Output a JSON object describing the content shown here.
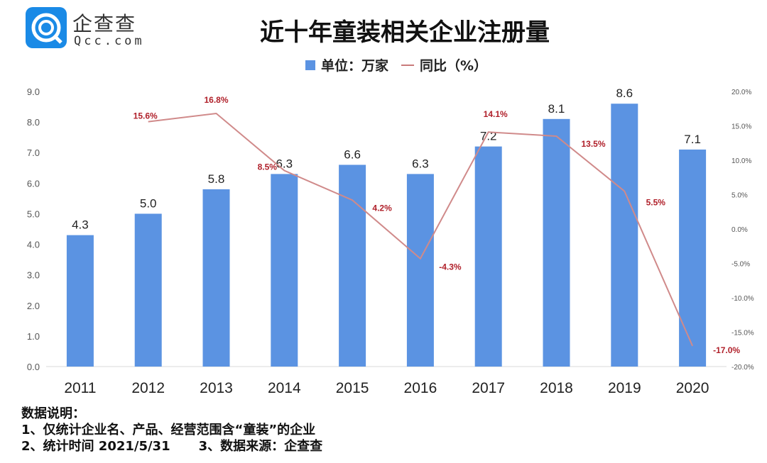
{
  "logo": {
    "cn": "企查查",
    "en": "Qcc.com"
  },
  "title": "近十年童装相关企业注册量",
  "legend": {
    "bars": "单位：万家",
    "line": "同比（%）"
  },
  "colors": {
    "bar": "#5b93e2",
    "line": "#d08a8a",
    "line_label": "#b0202a"
  },
  "chart_data": {
    "type": "bar+line",
    "title": "近十年童装相关企业注册量",
    "categories": [
      "2011",
      "2012",
      "2013",
      "2014",
      "2015",
      "2016",
      "2017",
      "2018",
      "2019",
      "2020"
    ],
    "series": [
      {
        "name": "单位：万家",
        "type": "bar",
        "axis": "left",
        "values": [
          4.3,
          5.0,
          5.8,
          6.3,
          6.6,
          6.3,
          7.2,
          8.1,
          8.6,
          7.1
        ],
        "labels": [
          "4.3",
          "5.0",
          "5.8",
          "6.3",
          "6.6",
          "6.3",
          "7.2",
          "8.1",
          "8.6",
          "7.1"
        ]
      },
      {
        "name": "同比（%）",
        "type": "line",
        "axis": "right",
        "values": [
          null,
          15.6,
          16.8,
          8.5,
          4.2,
          -4.3,
          14.1,
          13.5,
          5.5,
          -17.0
        ],
        "labels": [
          "",
          "15.6%",
          "16.8%",
          "8.5%",
          "4.2%",
          "-4.3%",
          "14.1%",
          "13.5%",
          "5.5%",
          "-17.0%"
        ]
      }
    ],
    "left_axis": {
      "range": [
        0,
        9
      ],
      "ticks": [
        "0.0",
        "1.0",
        "2.0",
        "3.0",
        "4.0",
        "5.0",
        "6.0",
        "7.0",
        "8.0",
        "9.0"
      ]
    },
    "right_axis": {
      "range": [
        -20,
        20
      ],
      "ticks": [
        "-20.0%",
        "-15.0%",
        "-10.0%",
        "-5.0%",
        "0.0%",
        "5.0%",
        "10.0%",
        "15.0%",
        "20.0%"
      ]
    },
    "grid": false,
    "legend_position": "top"
  },
  "notes": {
    "heading": "数据说明：",
    "line1": "1、仅统计企业名、产品、经营范围含“童装”的企业",
    "line2a": "2、统计时间 2021/5/31",
    "line2b": "3、数据来源：企查查"
  }
}
